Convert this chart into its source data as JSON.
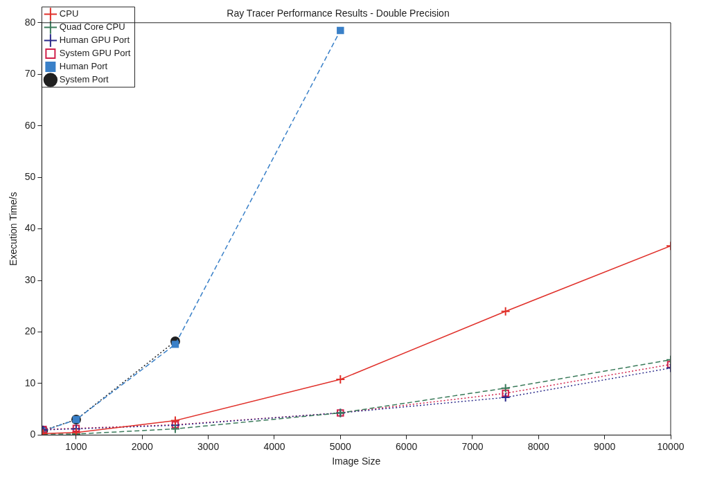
{
  "chart_data": {
    "type": "line",
    "title": "Ray Tracer Performance Results - Double Precision",
    "xlabel": "Image Size",
    "ylabel": "Execution Time/s",
    "x": [
      500,
      1000,
      2500,
      5000,
      7500,
      10000
    ],
    "xlim": [
      480,
      10000
    ],
    "xticks": [
      1000,
      2000,
      3000,
      4000,
      5000,
      6000,
      7000,
      8000,
      9000,
      10000
    ],
    "ylim": [
      0,
      80
    ],
    "yticks": [
      0,
      10,
      20,
      30,
      40,
      50,
      60,
      70,
      80
    ],
    "grid": false,
    "legend": "top left",
    "series": [
      {
        "name": "CPU",
        "color": "#e0302a",
        "line_style": "solid",
        "marker": "cross",
        "values": [
          0.3,
          0.5,
          2.8,
          10.8,
          24,
          36.7
        ]
      },
      {
        "name": "Quad Core CPU",
        "color": "#3a7a5a",
        "line_style": "dashed",
        "marker": "cross",
        "values": [
          0.2,
          0.2,
          1.2,
          4.3,
          9.1,
          14.6
        ]
      },
      {
        "name": "Human GPU Port",
        "color": "#2a2a8a",
        "line_style": "dotted",
        "marker": "cross",
        "values": [
          1.0,
          1.2,
          1.9,
          4.3,
          7.3,
          13
        ]
      },
      {
        "name": "System GPU Port",
        "color": "#d0204a",
        "line_style": "dotted",
        "marker": "square",
        "values": [
          1.1,
          1.3,
          2.0,
          4.3,
          8.1,
          13.7
        ]
      },
      {
        "name": "Human Port",
        "color": "#3a80c8",
        "line_style": "dashed",
        "marker": "square",
        "values": [
          0.8,
          3.0,
          17.6,
          78.5,
          null,
          null
        ]
      },
      {
        "name": "System Port",
        "color": "#202020",
        "line_style": "dotted",
        "marker": "circle",
        "values": [
          0.9,
          3.0,
          18.2,
          null,
          null,
          null
        ]
      }
    ]
  }
}
